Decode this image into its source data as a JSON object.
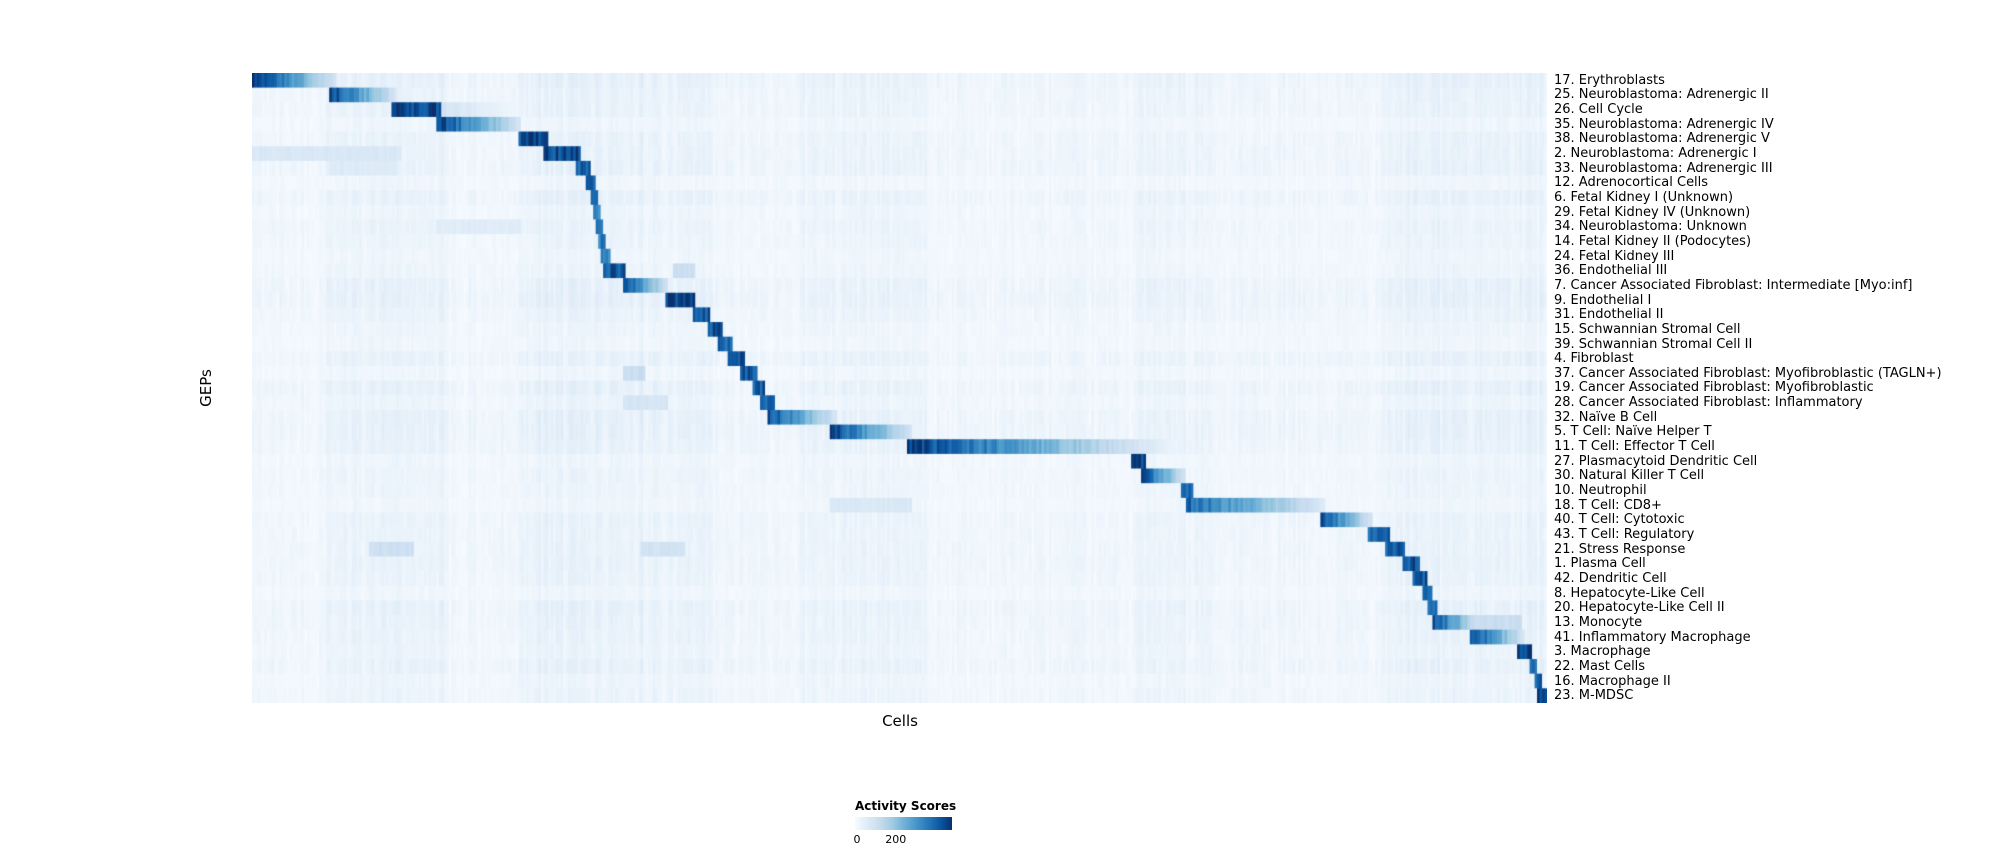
{
  "figure": {
    "xlabel": "Cells",
    "ylabel": "GEPs",
    "legend": {
      "title": "Activity Scores",
      "tick_min": "0",
      "tick_max": "200"
    }
  },
  "colors": {
    "background": "#ffffff",
    "heatmap_low": "#f7fbff",
    "heatmap_high": "#08306b",
    "text": "#000000"
  },
  "chart_data": {
    "type": "heatmap",
    "xlabel": "Cells",
    "ylabel": "GEPs",
    "colormap": "Blues",
    "colorbar": {
      "label": "Activity Scores",
      "ticks": [
        0,
        200
      ]
    },
    "value_range": [
      0,
      460
    ],
    "n_rows": 43,
    "block_format": [
      "start_fraction_of_x",
      "end_fraction_of_x",
      "peak_activity_value",
      "fades_to_right_0_or_1"
    ],
    "rows": [
      {
        "label": "17. Erythroblasts",
        "blocks": [
          [
            0.0,
            0.065,
            460,
            1
          ]
        ]
      },
      {
        "label": "25. Neuroblastoma: Adrenergic II",
        "blocks": [
          [
            0.06,
            0.112,
            430,
            1
          ]
        ]
      },
      {
        "label": "26. Cell Cycle",
        "blocks": [
          [
            0.108,
            0.147,
            430,
            0
          ],
          [
            0.147,
            0.205,
            90,
            1
          ]
        ]
      },
      {
        "label": "35. Neuroblastoma: Adrenergic IV",
        "blocks": [
          [
            0.142,
            0.208,
            440,
            1
          ]
        ]
      },
      {
        "label": "38. Neuroblastoma: Adrenergic V",
        "blocks": [
          [
            0.205,
            0.228,
            420,
            0
          ]
        ]
      },
      {
        "label": "2. Neuroblastoma: Adrenergic I",
        "blocks": [
          [
            0.225,
            0.254,
            420,
            0
          ],
          [
            0.0,
            0.115,
            70,
            0
          ]
        ]
      },
      {
        "label": "33. Neuroblastoma: Adrenergic III",
        "blocks": [
          [
            0.25,
            0.262,
            400,
            0
          ],
          [
            0.06,
            0.112,
            60,
            0
          ]
        ]
      },
      {
        "label": "12. Adrenocortical Cells",
        "blocks": [
          [
            0.258,
            0.266,
            380,
            0
          ]
        ]
      },
      {
        "label": "6. Fetal Kidney I (Unknown)",
        "blocks": [
          [
            0.261,
            0.267,
            350,
            0
          ]
        ]
      },
      {
        "label": "29. Fetal Kidney IV (Unknown)",
        "blocks": [
          [
            0.263,
            0.269,
            340,
            0
          ]
        ]
      },
      {
        "label": "34. Neuroblastoma: Unknown",
        "blocks": [
          [
            0.265,
            0.271,
            330,
            0
          ],
          [
            0.142,
            0.208,
            55,
            0
          ]
        ]
      },
      {
        "label": "14. Fetal Kidney II (Podocytes)",
        "blocks": [
          [
            0.267,
            0.273,
            340,
            0
          ]
        ]
      },
      {
        "label": "24. Fetal Kidney III",
        "blocks": [
          [
            0.269,
            0.276,
            330,
            0
          ]
        ]
      },
      {
        "label": "36. Endothelial III",
        "blocks": [
          [
            0.272,
            0.289,
            400,
            0
          ],
          [
            0.325,
            0.342,
            110,
            0
          ]
        ]
      },
      {
        "label": "7. Cancer Associated Fibroblast: Intermediate [Myo:inf]",
        "blocks": [
          [
            0.287,
            0.322,
            420,
            1
          ]
        ]
      },
      {
        "label": "9. Endothelial I",
        "blocks": [
          [
            0.32,
            0.342,
            430,
            0
          ]
        ]
      },
      {
        "label": "31. Endothelial II",
        "blocks": [
          [
            0.34,
            0.354,
            400,
            0
          ]
        ]
      },
      {
        "label": "15. Schwannian Stromal Cell",
        "blocks": [
          [
            0.352,
            0.364,
            410,
            0
          ]
        ]
      },
      {
        "label": "39. Schwannian Stromal Cell II",
        "blocks": [
          [
            0.36,
            0.372,
            380,
            0
          ]
        ]
      },
      {
        "label": "4. Fibroblast",
        "blocks": [
          [
            0.367,
            0.381,
            420,
            0
          ]
        ]
      },
      {
        "label": "37. Cancer Associated Fibroblast: Myofibroblastic (TAGLN+)",
        "blocks": [
          [
            0.377,
            0.391,
            410,
            0
          ],
          [
            0.287,
            0.303,
            110,
            0
          ]
        ]
      },
      {
        "label": "19. Cancer Associated Fibroblast: Myofibroblastic",
        "blocks": [
          [
            0.386,
            0.397,
            400,
            0
          ]
        ]
      },
      {
        "label": "28. Cancer Associated Fibroblast: Inflammatory",
        "blocks": [
          [
            0.392,
            0.403,
            380,
            0
          ],
          [
            0.287,
            0.322,
            80,
            0
          ]
        ]
      },
      {
        "label": "32. Naïve B Cell",
        "blocks": [
          [
            0.398,
            0.452,
            420,
            1
          ]
        ]
      },
      {
        "label": "5. T Cell: Naïve Helper T",
        "blocks": [
          [
            0.446,
            0.51,
            440,
            1
          ]
        ]
      },
      {
        "label": "11. T Cell: Effector T Cell",
        "blocks": [
          [
            0.506,
            0.685,
            450,
            1
          ],
          [
            0.685,
            0.721,
            80,
            1
          ]
        ]
      },
      {
        "label": "27. Plasmacytoid Dendritic Cell",
        "blocks": [
          [
            0.679,
            0.69,
            420,
            0
          ]
        ]
      },
      {
        "label": "30. Natural Killer T Cell",
        "blocks": [
          [
            0.687,
            0.721,
            430,
            1
          ]
        ]
      },
      {
        "label": "10. Neutrophil",
        "blocks": [
          [
            0.717,
            0.726,
            380,
            0
          ]
        ]
      },
      {
        "label": "18. T Cell: CD8+",
        "blocks": [
          [
            0.721,
            0.828,
            380,
            1
          ],
          [
            0.446,
            0.51,
            70,
            0
          ]
        ]
      },
      {
        "label": "40. T Cell: Cytotoxic",
        "blocks": [
          [
            0.825,
            0.866,
            420,
            1
          ]
        ]
      },
      {
        "label": "43. T Cell: Regulatory",
        "blocks": [
          [
            0.861,
            0.878,
            380,
            0
          ]
        ]
      },
      {
        "label": "21. Stress Response",
        "blocks": [
          [
            0.875,
            0.891,
            400,
            0
          ],
          [
            0.09,
            0.125,
            100,
            0
          ],
          [
            0.3,
            0.335,
            90,
            0
          ]
        ]
      },
      {
        "label": "1. Plasma Cell",
        "blocks": [
          [
            0.889,
            0.901,
            410,
            0
          ]
        ]
      },
      {
        "label": "42. Dendritic Cell",
        "blocks": [
          [
            0.897,
            0.908,
            400,
            0
          ]
        ]
      },
      {
        "label": "8. Hepatocyte-Like Cell",
        "blocks": [
          [
            0.903,
            0.911,
            360,
            0
          ]
        ]
      },
      {
        "label": "20. Hepatocyte-Like Cell II",
        "blocks": [
          [
            0.907,
            0.915,
            360,
            0
          ]
        ]
      },
      {
        "label": "13. Monocyte",
        "blocks": [
          [
            0.911,
            0.947,
            440,
            1
          ],
          [
            0.947,
            0.98,
            110,
            0
          ]
        ]
      },
      {
        "label": "41. Inflammatory Macrophage",
        "blocks": [
          [
            0.941,
            0.983,
            430,
            1
          ]
        ]
      },
      {
        "label": "3. Macrophage",
        "blocks": [
          [
            0.977,
            0.989,
            420,
            0
          ]
        ]
      },
      {
        "label": "22. Mast Cells",
        "blocks": [
          [
            0.987,
            0.993,
            380,
            0
          ]
        ]
      },
      {
        "label": "16. Macrophage II",
        "blocks": [
          [
            0.99,
            0.996,
            400,
            0
          ]
        ]
      },
      {
        "label": "23. M-MDSC",
        "blocks": [
          [
            0.993,
            1.0,
            440,
            0
          ]
        ]
      }
    ],
    "background_bands": [
      [
        0.055,
        0.15,
        12
      ],
      [
        0.205,
        0.3,
        15
      ],
      [
        0.3,
        0.355,
        10
      ],
      [
        0.42,
        0.52,
        10
      ],
      [
        0.68,
        0.74,
        8
      ],
      [
        0.87,
        1.0,
        14
      ]
    ],
    "noise": {
      "seed": 42,
      "column_base_max": 16,
      "cell_jitter_max": 14,
      "row_factor_range": [
        0.5,
        1.4
      ]
    },
    "layout": {
      "legend_position": "bottom-center",
      "row_labels_position": "right",
      "grid": false
    }
  }
}
